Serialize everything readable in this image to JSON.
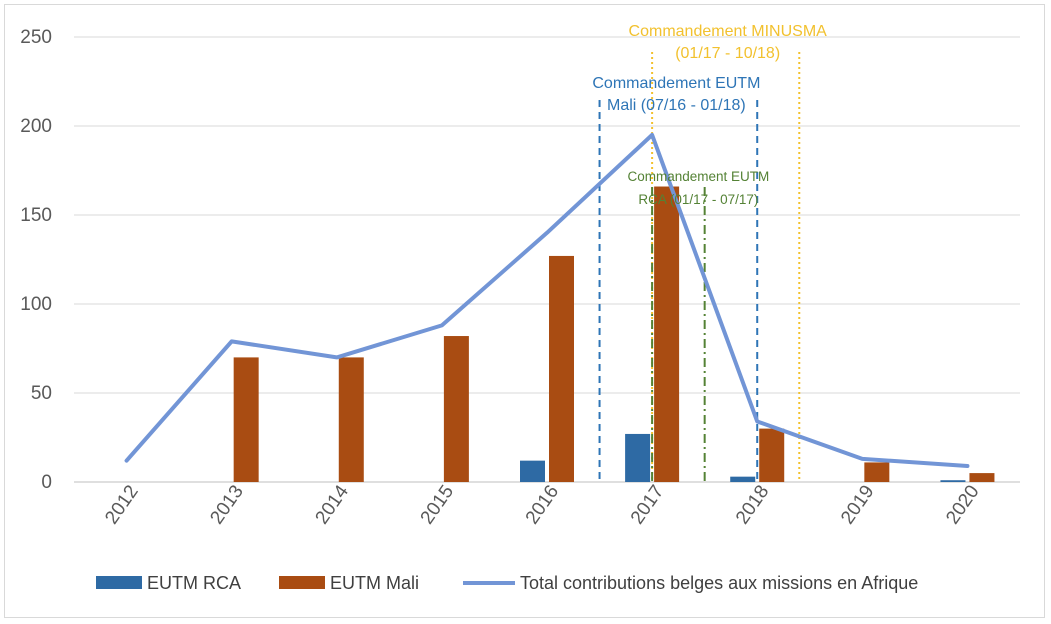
{
  "chart_data": {
    "type": "bar",
    "categories": [
      "2012",
      "2013",
      "2014",
      "2015",
      "2016",
      "2017",
      "2018",
      "2019",
      "2020"
    ],
    "ylim": [
      0,
      250
    ],
    "yticks": [
      0,
      50,
      100,
      150,
      200,
      250
    ],
    "grid": true,
    "legend_position": "bottom",
    "series": [
      {
        "name": "EUTM RCA",
        "kind": "bar",
        "color": "#2E6AA4",
        "values": [
          0,
          0,
          0,
          0,
          12,
          27,
          3,
          0,
          1
        ]
      },
      {
        "name": "EUTM Mali",
        "kind": "bar",
        "color": "#A94C12",
        "values": [
          0,
          70,
          70,
          82,
          127,
          166,
          30,
          11,
          5
        ]
      },
      {
        "name": "Total contributions belges aux missions en Afrique",
        "kind": "line",
        "color": "#7295D6",
        "values": [
          12,
          79,
          70,
          88,
          140,
          195,
          34,
          13,
          9
        ]
      }
    ],
    "annotations": [
      {
        "lines": [
          "Commandement MINUSMA",
          "(01/17 - 10/18)"
        ],
        "color": "#F2C12E",
        "x_start": 2017.0,
        "x_end": 2018.4,
        "line_style": "dotted"
      },
      {
        "lines": [
          "Commandement EUTM",
          "Mali (07/16 - 01/18)"
        ],
        "color": "#2E75B6",
        "x_start": 2016.5,
        "x_end": 2018.0,
        "line_style": "dashed"
      },
      {
        "lines": [
          "Commandement EUTM",
          "RCA (01/17 - 07/17)"
        ],
        "color": "#548235",
        "x_start": 2017.0,
        "x_end": 2017.5,
        "line_style": "dashdot"
      }
    ]
  }
}
